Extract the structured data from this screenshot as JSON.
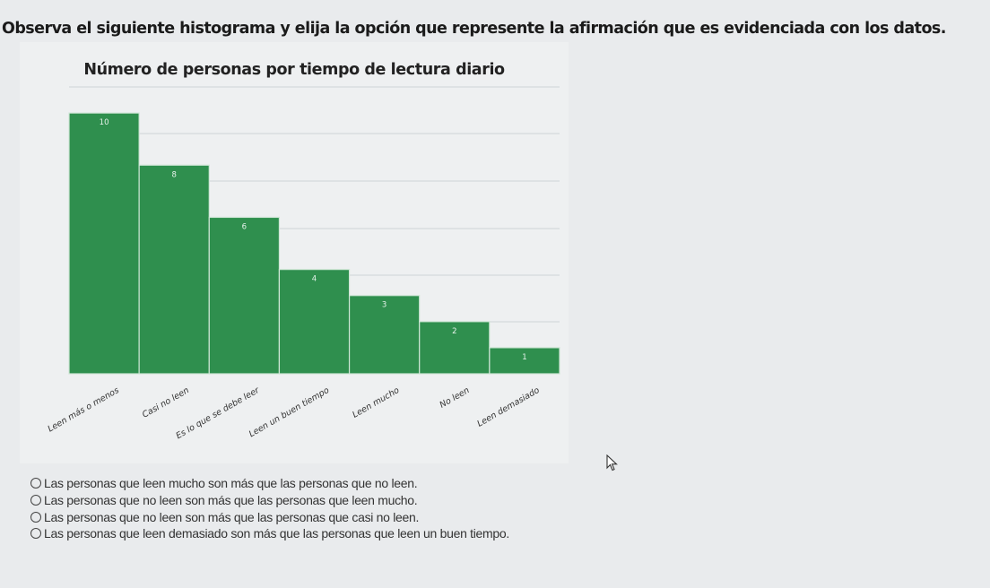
{
  "question": "Observa el siguiente histograma y elija la opción que represente la afirmación que es evidenciada con los datos.",
  "chart_data": {
    "type": "bar",
    "title": "Número de personas por tiempo de lectura diario",
    "categories": [
      "Leen más o menos",
      "Casi no leen",
      "Es lo que se debe leer",
      "Leen un buen tiempo",
      "Leen mucho",
      "No leen",
      "Leen demasiado"
    ],
    "values": [
      10,
      8,
      6,
      4,
      3,
      2,
      1
    ],
    "data_labels": [
      "10",
      "8",
      "6",
      "4",
      "3",
      "2",
      "1"
    ],
    "ylim": [
      0,
      11
    ],
    "grid": true,
    "legend": "none",
    "bar_color": "#2f8f4e"
  },
  "options": [
    "Las personas que leen mucho son más que las personas que no leen.",
    "Las personas que no leen son más que las personas que leen mucho.",
    "Las personas que no leen son más que las personas que casi no leen.",
    "Las personas que leen demasiado son más que las personas que leen un buen tiempo."
  ],
  "icons": {
    "cursor": "arrow-cursor-icon"
  }
}
